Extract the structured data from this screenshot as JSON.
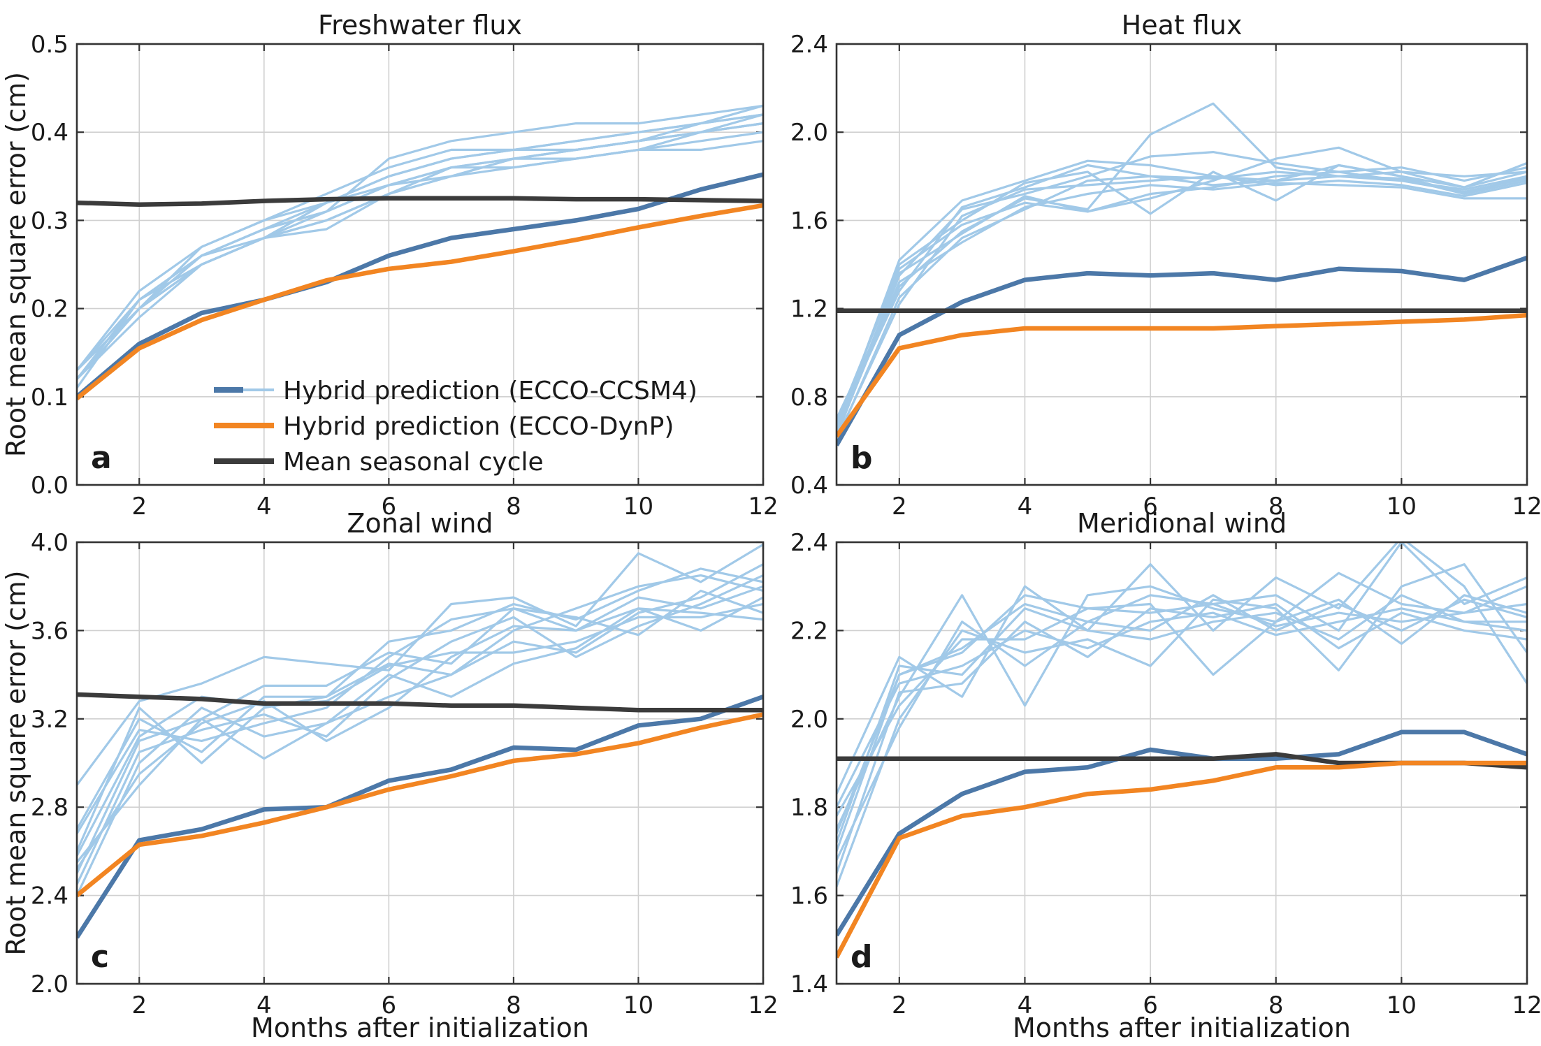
{
  "colors": {
    "member_light": "#a1c9e8",
    "ccsm4_mean": "#4c78a8",
    "dynp": "#f28522",
    "seasonal": "#3b3b3b"
  },
  "legend": {
    "items": [
      {
        "label": "Hybrid prediction (ECCO-CCSM4)",
        "style": "dual",
        "colors": [
          "#4c78a8",
          "#a1c9e8"
        ]
      },
      {
        "label": "Hybrid prediction (ECCO-DynP)",
        "colors": [
          "#f28522"
        ]
      },
      {
        "label": "Mean seasonal cycle",
        "colors": [
          "#3b3b3b"
        ]
      }
    ]
  },
  "chart_data": [
    {
      "type": "line",
      "title": "Freshwater flux",
      "letter": "a",
      "xlabel": "",
      "ylabel": "Root mean square error (cm)",
      "xlim": [
        1,
        12
      ],
      "ylim": [
        0.0,
        0.5
      ],
      "yticks": [
        "0.0",
        "0.1",
        "0.2",
        "0.3",
        "0.4",
        "0.5"
      ],
      "xticks": [
        "2",
        "4",
        "6",
        "8",
        "10",
        "12"
      ],
      "x": [
        1,
        2,
        3,
        4,
        5,
        6,
        7,
        8,
        9,
        10,
        11,
        12
      ],
      "members": [
        [
          0.12,
          0.21,
          0.26,
          0.29,
          0.32,
          0.35,
          0.37,
          0.38,
          0.38,
          0.39,
          0.4,
          0.41
        ],
        [
          0.13,
          0.2,
          0.25,
          0.28,
          0.31,
          0.34,
          0.36,
          0.37,
          0.38,
          0.39,
          0.41,
          0.42
        ],
        [
          0.12,
          0.19,
          0.25,
          0.28,
          0.3,
          0.33,
          0.35,
          0.36,
          0.37,
          0.38,
          0.4,
          0.41
        ],
        [
          0.13,
          0.22,
          0.27,
          0.3,
          0.33,
          0.36,
          0.38,
          0.38,
          0.39,
          0.4,
          0.41,
          0.43
        ],
        [
          0.12,
          0.2,
          0.26,
          0.29,
          0.31,
          0.34,
          0.36,
          0.37,
          0.38,
          0.39,
          0.4,
          0.42
        ],
        [
          0.11,
          0.21,
          0.25,
          0.28,
          0.3,
          0.33,
          0.35,
          0.37,
          0.37,
          0.38,
          0.39,
          0.4
        ],
        [
          0.12,
          0.2,
          0.27,
          0.3,
          0.32,
          0.35,
          0.37,
          0.38,
          0.39,
          0.4,
          0.41,
          0.42
        ],
        [
          0.13,
          0.21,
          0.26,
          0.29,
          0.31,
          0.37,
          0.39,
          0.4,
          0.41,
          0.41,
          0.42,
          0.43
        ],
        [
          0.12,
          0.2,
          0.25,
          0.28,
          0.29,
          0.33,
          0.36,
          0.36,
          0.37,
          0.38,
          0.38,
          0.39
        ],
        [
          0.12,
          0.21,
          0.26,
          0.28,
          0.32,
          0.34,
          0.35,
          0.37,
          0.38,
          0.39,
          0.4,
          0.41
        ]
      ],
      "series": [
        {
          "name": "Hybrid prediction (ECCO-CCSM4)",
          "values": [
            0.1,
            0.16,
            0.195,
            0.21,
            0.23,
            0.26,
            0.28,
            0.29,
            0.3,
            0.313,
            0.335,
            0.352
          ]
        },
        {
          "name": "Hybrid prediction (ECCO-DynP)",
          "values": [
            0.098,
            0.155,
            0.187,
            0.21,
            0.232,
            0.245,
            0.253,
            0.265,
            0.278,
            0.292,
            0.305,
            0.317
          ]
        },
        {
          "name": "Mean seasonal cycle",
          "values": [
            0.32,
            0.318,
            0.319,
            0.322,
            0.324,
            0.325,
            0.325,
            0.325,
            0.324,
            0.324,
            0.323,
            0.322
          ]
        }
      ],
      "grid": true
    },
    {
      "type": "line",
      "title": "Heat flux",
      "letter": "b",
      "xlabel": "",
      "ylabel": "",
      "xlim": [
        1,
        12
      ],
      "ylim": [
        0.4,
        2.4
      ],
      "yticks": [
        "0.4",
        "0.8",
        "1.2",
        "1.6",
        "2.0",
        "2.4"
      ],
      "xticks": [
        "2",
        "4",
        "6",
        "8",
        "10",
        "12"
      ],
      "x": [
        1,
        2,
        3,
        4,
        5,
        6,
        7,
        8,
        9,
        10,
        11,
        12
      ],
      "members": [
        [
          0.65,
          1.42,
          1.69,
          1.78,
          1.87,
          1.85,
          1.8,
          1.78,
          1.85,
          1.8,
          1.72,
          1.8
        ],
        [
          0.62,
          1.35,
          1.65,
          1.72,
          1.8,
          1.89,
          1.91,
          1.86,
          1.82,
          1.84,
          1.78,
          1.84
        ],
        [
          0.7,
          1.3,
          1.55,
          1.7,
          1.65,
          1.99,
          2.13,
          1.84,
          1.8,
          1.78,
          1.74,
          1.8
        ],
        [
          0.68,
          1.38,
          1.58,
          1.68,
          1.64,
          1.7,
          1.78,
          1.88,
          1.93,
          1.82,
          1.75,
          1.82
        ],
        [
          0.6,
          1.25,
          1.52,
          1.65,
          1.78,
          1.8,
          1.76,
          1.78,
          1.8,
          1.79,
          1.72,
          1.78
        ],
        [
          0.66,
          1.4,
          1.6,
          1.77,
          1.82,
          1.63,
          1.82,
          1.69,
          1.85,
          1.8,
          1.75,
          1.86
        ],
        [
          0.63,
          1.32,
          1.5,
          1.66,
          1.72,
          1.76,
          1.74,
          1.77,
          1.76,
          1.75,
          1.7,
          1.7
        ],
        [
          0.67,
          1.28,
          1.66,
          1.75,
          1.85,
          1.8,
          1.79,
          1.82,
          1.8,
          1.82,
          1.8,
          1.82
        ],
        [
          0.64,
          1.36,
          1.54,
          1.71,
          1.64,
          1.72,
          1.75,
          1.8,
          1.82,
          1.78,
          1.73,
          1.79
        ],
        [
          0.61,
          1.22,
          1.62,
          1.74,
          1.76,
          1.78,
          1.8,
          1.76,
          1.78,
          1.76,
          1.71,
          1.77
        ]
      ],
      "series": [
        {
          "name": "Hybrid prediction (ECCO-CCSM4)",
          "values": [
            0.58,
            1.08,
            1.23,
            1.33,
            1.36,
            1.35,
            1.36,
            1.33,
            1.38,
            1.37,
            1.33,
            1.43
          ]
        },
        {
          "name": "Hybrid prediction (ECCO-DynP)",
          "values": [
            0.62,
            1.02,
            1.08,
            1.11,
            1.11,
            1.11,
            1.11,
            1.12,
            1.13,
            1.14,
            1.15,
            1.17
          ]
        },
        {
          "name": "Mean seasonal cycle",
          "values": [
            1.19,
            1.19,
            1.19,
            1.19,
            1.19,
            1.19,
            1.19,
            1.19,
            1.19,
            1.19,
            1.19,
            1.19
          ]
        }
      ],
      "grid": true
    },
    {
      "type": "line",
      "title": "Zonal wind",
      "letter": "c",
      "xlabel": "Months after initialization",
      "ylabel": "Root mean square error (cm)",
      "xlim": [
        1,
        12
      ],
      "ylim": [
        2.0,
        4.0
      ],
      "yticks": [
        "2.0",
        "2.4",
        "2.8",
        "3.2",
        "3.6",
        "4.0"
      ],
      "xticks": [
        "2",
        "4",
        "6",
        "8",
        "10",
        "12"
      ],
      "x": [
        1,
        2,
        3,
        4,
        5,
        6,
        7,
        8,
        9,
        10,
        11,
        12
      ],
      "members": [
        [
          2.9,
          3.28,
          3.36,
          3.48,
          3.45,
          3.42,
          3.72,
          3.75,
          3.62,
          3.95,
          3.82,
          3.99
        ],
        [
          2.7,
          3.2,
          3.05,
          3.3,
          3.3,
          3.55,
          3.6,
          3.72,
          3.65,
          3.78,
          3.88,
          3.82
        ],
        [
          2.5,
          3.1,
          3.2,
          3.02,
          3.18,
          3.4,
          3.3,
          3.45,
          3.52,
          3.7,
          3.68,
          3.65
        ],
        [
          2.6,
          3.25,
          3.0,
          3.25,
          3.3,
          3.45,
          3.4,
          3.6,
          3.7,
          3.8,
          3.85,
          3.78
        ],
        [
          2.45,
          3.05,
          3.15,
          3.22,
          3.12,
          3.38,
          3.55,
          3.66,
          3.48,
          3.62,
          3.72,
          3.85
        ],
        [
          2.55,
          2.9,
          3.2,
          3.35,
          3.35,
          3.5,
          3.45,
          3.7,
          3.6,
          3.75,
          3.7,
          3.8
        ],
        [
          2.68,
          3.15,
          3.1,
          3.18,
          3.25,
          3.48,
          3.65,
          3.7,
          3.66,
          3.58,
          3.78,
          3.68
        ],
        [
          2.4,
          3.0,
          3.25,
          3.12,
          3.18,
          3.3,
          3.4,
          3.55,
          3.5,
          3.68,
          3.75,
          3.9
        ],
        [
          2.58,
          3.12,
          3.3,
          3.26,
          3.28,
          3.44,
          3.5,
          3.5,
          3.55,
          3.66,
          3.66,
          3.72
        ],
        [
          2.52,
          2.95,
          3.18,
          3.28,
          3.1,
          3.25,
          3.48,
          3.62,
          3.6,
          3.7,
          3.6,
          3.75
        ]
      ],
      "series": [
        {
          "name": "Hybrid prediction (ECCO-CCSM4)",
          "values": [
            2.21,
            2.65,
            2.7,
            2.79,
            2.8,
            2.92,
            2.97,
            3.07,
            3.06,
            3.17,
            3.2,
            3.3
          ]
        },
        {
          "name": "Hybrid prediction (ECCO-DynP)",
          "values": [
            2.4,
            2.63,
            2.67,
            2.73,
            2.8,
            2.88,
            2.94,
            3.01,
            3.04,
            3.09,
            3.16,
            3.22
          ]
        },
        {
          "name": "Mean seasonal cycle",
          "values": [
            3.31,
            3.3,
            3.29,
            3.27,
            3.27,
            3.27,
            3.26,
            3.26,
            3.25,
            3.24,
            3.24,
            3.24
          ]
        }
      ],
      "grid": true
    },
    {
      "type": "line",
      "title": "Meridional wind",
      "letter": "d",
      "xlabel": "Months after initialization",
      "ylabel": "",
      "xlim": [
        1,
        12
      ],
      "ylim": [
        1.4,
        2.4
      ],
      "yticks": [
        "1.4",
        "1.6",
        "1.8",
        "2.0",
        "2.2",
        "2.4"
      ],
      "xticks": [
        "2",
        "4",
        "6",
        "8",
        "10",
        "12"
      ],
      "x": [
        1,
        2,
        3,
        4,
        5,
        6,
        7,
        8,
        9,
        10,
        11,
        12
      ],
      "members": [
        [
          1.83,
          2.14,
          2.05,
          2.3,
          2.2,
          2.35,
          2.2,
          2.32,
          2.25,
          2.41,
          2.3,
          2.08
        ],
        [
          1.75,
          2.05,
          2.28,
          2.03,
          2.28,
          2.3,
          2.25,
          2.22,
          2.33,
          2.26,
          2.24,
          2.3
        ],
        [
          1.62,
          2.0,
          2.2,
          2.15,
          2.18,
          2.12,
          2.27,
          2.25,
          2.11,
          2.3,
          2.35,
          2.15
        ],
        [
          1.7,
          2.1,
          2.15,
          2.28,
          2.25,
          2.26,
          2.1,
          2.22,
          2.27,
          2.17,
          2.28,
          2.24
        ],
        [
          1.8,
          2.08,
          2.12,
          2.2,
          2.16,
          2.22,
          2.24,
          2.19,
          2.22,
          2.25,
          2.22,
          2.22
        ],
        [
          1.68,
          1.98,
          2.22,
          2.12,
          2.22,
          2.28,
          2.26,
          2.28,
          2.2,
          2.4,
          2.26,
          2.32
        ],
        [
          1.72,
          2.12,
          2.1,
          2.25,
          2.2,
          2.18,
          2.22,
          2.24,
          2.18,
          2.28,
          2.22,
          2.2
        ],
        [
          1.78,
          2.03,
          2.18,
          2.18,
          2.25,
          2.24,
          2.26,
          2.21,
          2.24,
          2.22,
          2.24,
          2.26
        ],
        [
          1.65,
          2.06,
          2.08,
          2.22,
          2.14,
          2.25,
          2.23,
          2.26,
          2.16,
          2.24,
          2.2,
          2.18
        ],
        [
          1.74,
          2.1,
          2.16,
          2.26,
          2.22,
          2.2,
          2.28,
          2.2,
          2.26,
          2.2,
          2.27,
          2.23
        ]
      ],
      "series": [
        {
          "name": "Hybrid prediction (ECCO-CCSM4)",
          "values": [
            1.51,
            1.74,
            1.83,
            1.88,
            1.89,
            1.93,
            1.91,
            1.91,
            1.92,
            1.97,
            1.97,
            1.92
          ]
        },
        {
          "name": "Hybrid prediction (ECCO-DynP)",
          "values": [
            1.46,
            1.73,
            1.78,
            1.8,
            1.83,
            1.84,
            1.86,
            1.89,
            1.89,
            1.9,
            1.9,
            1.9
          ]
        },
        {
          "name": "Mean seasonal cycle",
          "values": [
            1.91,
            1.91,
            1.91,
            1.91,
            1.91,
            1.91,
            1.91,
            1.92,
            1.9,
            1.9,
            1.9,
            1.89
          ]
        }
      ],
      "grid": true
    }
  ]
}
